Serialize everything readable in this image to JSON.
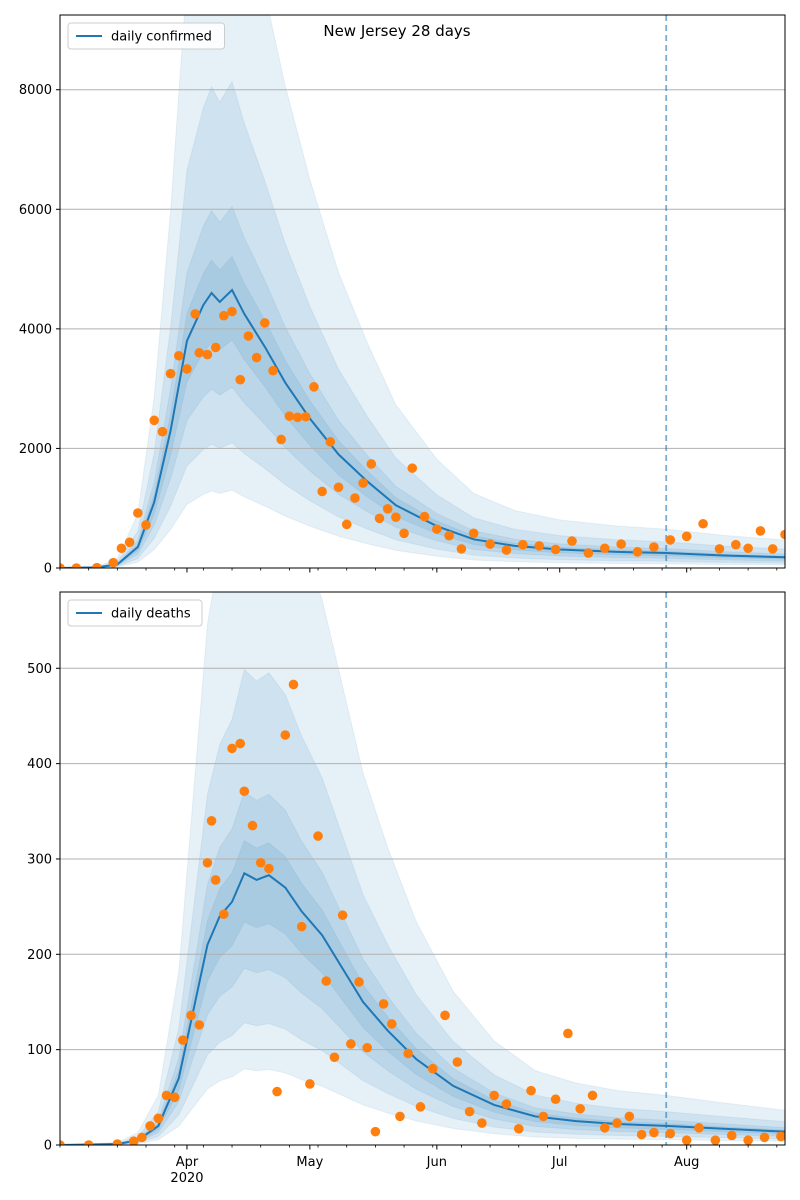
{
  "figure": {
    "title": "New Jersey 28 days"
  },
  "colors": {
    "model": "#1f77b4",
    "observed": "#ff7f0e",
    "band": "#1f77b4",
    "grid": "#b0b0b0"
  },
  "chart_data": [
    {
      "type": "line",
      "title": "New Jersey 28 days",
      "xlabel": "",
      "ylabel": "",
      "x_axis": {
        "start": "2020-03-01",
        "end": "2020-08-25",
        "tick_labels": [
          "Apr\n2020",
          "May",
          "Jun",
          "Jul",
          "Aug"
        ]
      },
      "ylim": [
        0,
        9250
      ],
      "yticks": [
        0,
        2000,
        4000,
        6000,
        8000
      ],
      "grid": "horizontal",
      "legend": {
        "position": "top-left",
        "entries": [
          "daily confirmed"
        ]
      },
      "forecast_start": "2020-07-27",
      "series": [
        {
          "name": "daily confirmed",
          "kind": "model",
          "x": [
            "2020-03-01",
            "2020-03-10",
            "2020-03-15",
            "2020-03-20",
            "2020-03-24",
            "2020-03-28",
            "2020-04-01",
            "2020-04-05",
            "2020-04-07",
            "2020-04-09",
            "2020-04-12",
            "2020-04-15",
            "2020-04-20",
            "2020-04-25",
            "2020-05-01",
            "2020-05-08",
            "2020-05-15",
            "2020-05-22",
            "2020-06-01",
            "2020-06-10",
            "2020-06-20",
            "2020-07-01",
            "2020-07-15",
            "2020-07-27",
            "2020-08-10",
            "2020-08-25"
          ],
          "values": [
            0,
            10,
            60,
            350,
            1100,
            2300,
            3800,
            4400,
            4600,
            4450,
            4650,
            4250,
            3700,
            3100,
            2500,
            1900,
            1450,
            1050,
            700,
            480,
            370,
            310,
            270,
            250,
            210,
            180
          ]
        },
        {
          "name": "",
          "kind": "observed",
          "x": [
            "2020-03-01",
            "2020-03-05",
            "2020-03-10",
            "2020-03-14",
            "2020-03-16",
            "2020-03-18",
            "2020-03-20",
            "2020-03-22",
            "2020-03-24",
            "2020-03-26",
            "2020-03-28",
            "2020-03-30",
            "2020-04-01",
            "2020-04-03",
            "2020-04-04",
            "2020-04-06",
            "2020-04-08",
            "2020-04-10",
            "2020-04-12",
            "2020-04-14",
            "2020-04-16",
            "2020-04-18",
            "2020-04-20",
            "2020-04-22",
            "2020-04-24",
            "2020-04-26",
            "2020-04-28",
            "2020-04-30",
            "2020-05-02",
            "2020-05-04",
            "2020-05-06",
            "2020-05-08",
            "2020-05-10",
            "2020-05-12",
            "2020-05-14",
            "2020-05-16",
            "2020-05-18",
            "2020-05-20",
            "2020-05-22",
            "2020-05-24",
            "2020-05-26",
            "2020-05-29",
            "2020-06-01",
            "2020-06-04",
            "2020-06-07",
            "2020-06-10",
            "2020-06-14",
            "2020-06-18",
            "2020-06-22",
            "2020-06-26",
            "2020-06-30",
            "2020-07-04",
            "2020-07-08",
            "2020-07-12",
            "2020-07-16",
            "2020-07-20",
            "2020-07-24",
            "2020-07-28",
            "2020-08-01",
            "2020-08-05",
            "2020-08-09",
            "2020-08-13",
            "2020-08-16",
            "2020-08-19",
            "2020-08-22",
            "2020-08-25"
          ],
          "values": [
            0,
            0,
            5,
            90,
            330,
            430,
            920,
            720,
            2470,
            2280,
            3250,
            3550,
            3330,
            4250,
            3600,
            3570,
            3690,
            4220,
            4290,
            3150,
            3880,
            3520,
            4100,
            3300,
            2150,
            2540,
            2520,
            2530,
            3030,
            1280,
            2110,
            1350,
            730,
            1170,
            1420,
            1740,
            830,
            990,
            850,
            580,
            1670,
            860,
            650,
            540,
            320,
            580,
            400,
            300,
            390,
            370,
            310,
            450,
            250,
            330,
            400,
            270,
            350,
            470,
            530,
            740,
            320,
            390,
            330,
            620,
            320,
            560
          ]
        }
      ]
    },
    {
      "type": "line",
      "title": "",
      "xlabel": "",
      "ylabel": "",
      "x_axis": {
        "start": "2020-03-01",
        "end": "2020-08-25",
        "tick_labels": [
          "Apr\n2020",
          "May",
          "Jun",
          "Jul",
          "Aug"
        ]
      },
      "ylim": [
        0,
        580
      ],
      "yticks": [
        0,
        100,
        200,
        300,
        400,
        500
      ],
      "grid": "horizontal",
      "legend": {
        "position": "top-left",
        "entries": [
          "daily deaths"
        ]
      },
      "forecast_start": "2020-07-27",
      "series": [
        {
          "name": "daily deaths",
          "kind": "model",
          "x": [
            "2020-03-01",
            "2020-03-15",
            "2020-03-20",
            "2020-03-25",
            "2020-03-30",
            "2020-04-02",
            "2020-04-06",
            "2020-04-09",
            "2020-04-12",
            "2020-04-15",
            "2020-04-18",
            "2020-04-21",
            "2020-04-25",
            "2020-04-29",
            "2020-05-04",
            "2020-05-09",
            "2020-05-14",
            "2020-05-20",
            "2020-05-27",
            "2020-06-05",
            "2020-06-15",
            "2020-06-25",
            "2020-07-05",
            "2020-07-15",
            "2020-07-27",
            "2020-08-10",
            "2020-08-25"
          ],
          "values": [
            0,
            1,
            5,
            20,
            70,
            130,
            210,
            240,
            255,
            285,
            278,
            283,
            270,
            245,
            220,
            185,
            150,
            120,
            90,
            62,
            42,
            30,
            25,
            22,
            20,
            17,
            14
          ]
        },
        {
          "name": "",
          "kind": "observed",
          "x": [
            "2020-03-01",
            "2020-03-08",
            "2020-03-15",
            "2020-03-19",
            "2020-03-21",
            "2020-03-23",
            "2020-03-25",
            "2020-03-27",
            "2020-03-29",
            "2020-03-31",
            "2020-04-02",
            "2020-04-04",
            "2020-04-06",
            "2020-04-07",
            "2020-04-08",
            "2020-04-10",
            "2020-04-12",
            "2020-04-14",
            "2020-04-15",
            "2020-04-17",
            "2020-04-19",
            "2020-04-21",
            "2020-04-23",
            "2020-04-25",
            "2020-04-27",
            "2020-04-29",
            "2020-05-01",
            "2020-05-03",
            "2020-05-05",
            "2020-05-07",
            "2020-05-09",
            "2020-05-11",
            "2020-05-13",
            "2020-05-15",
            "2020-05-17",
            "2020-05-19",
            "2020-05-21",
            "2020-05-23",
            "2020-05-25",
            "2020-05-28",
            "2020-05-31",
            "2020-06-03",
            "2020-06-06",
            "2020-06-09",
            "2020-06-12",
            "2020-06-15",
            "2020-06-18",
            "2020-06-21",
            "2020-06-24",
            "2020-06-27",
            "2020-06-30",
            "2020-07-03",
            "2020-07-06",
            "2020-07-09",
            "2020-07-12",
            "2020-07-15",
            "2020-07-18",
            "2020-07-21",
            "2020-07-24",
            "2020-07-28",
            "2020-08-01",
            "2020-08-04",
            "2020-08-08",
            "2020-08-12",
            "2020-08-16",
            "2020-08-20",
            "2020-08-24"
          ],
          "values": [
            0,
            0,
            1,
            4,
            8,
            20,
            28,
            52,
            50,
            110,
            136,
            126,
            296,
            340,
            278,
            242,
            416,
            421,
            371,
            335,
            296,
            290,
            56,
            430,
            483,
            229,
            64,
            324,
            172,
            92,
            241,
            106,
            171,
            102,
            14,
            148,
            127,
            30,
            96,
            40,
            80,
            136,
            87,
            35,
            23,
            52,
            43,
            17,
            57,
            30,
            48,
            117,
            38,
            52,
            18,
            23,
            30,
            11,
            13,
            12,
            5,
            18,
            5,
            10,
            5,
            8,
            9
          ]
        }
      ]
    }
  ]
}
